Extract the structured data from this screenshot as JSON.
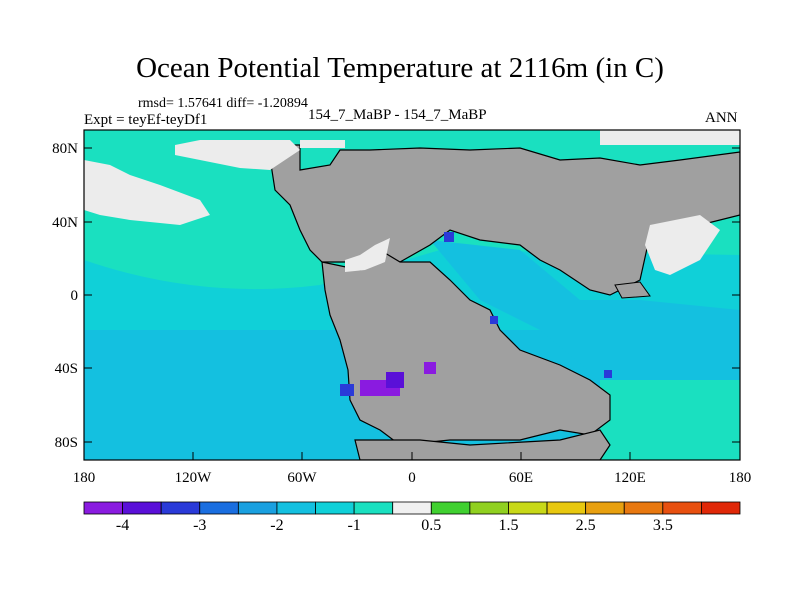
{
  "title": "Ocean Potential Temperature at 2116m (in C)",
  "rmsd_line": "rmsd= 1.57641 diff= -1.20894",
  "left_label": "Expt = teyEf-teyDf1",
  "center_label": "154_7_MaBP - 154_7_MaBP",
  "right_label": "ANN",
  "map": {
    "projection": "cylindrical-equidistant",
    "lon_range": [
      -180,
      180
    ],
    "lat_range": [
      -90,
      90
    ],
    "x_tick_labels": [
      "180",
      "120W",
      "60W",
      "0",
      "60E",
      "120E",
      "180"
    ],
    "y_tick_labels": [
      "80N",
      "40N",
      "0",
      "40S",
      "80S"
    ],
    "land_color": "#a0a0a0",
    "missing_color": "#e8e8e8"
  },
  "colorbar": {
    "colors": [
      "#8a1be0",
      "#5a10d8",
      "#2a3ad8",
      "#1a6ee0",
      "#1aa0e0",
      "#14c0e0",
      "#10d0d8",
      "#1ae0c0",
      "#f0f0f0",
      "#40d030",
      "#90d020",
      "#c8d818",
      "#e8c810",
      "#e8a010",
      "#e87810",
      "#e85010",
      "#e02808"
    ],
    "labels": [
      "-4",
      "-3",
      "-2",
      "-1",
      "0.5",
      "1.5",
      "2.5",
      "3.5"
    ]
  },
  "legend_colors": {
    "deep_negative": "#5a10d8",
    "ocean_mid": "#10d0d8",
    "ocean_light": "#1ae0c0",
    "ocean_low": "#14c0e0"
  }
}
